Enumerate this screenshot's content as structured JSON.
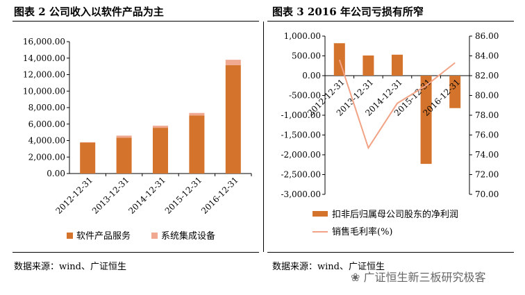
{
  "header": {
    "left_title": "图表 2  公司收入以软件产品为主",
    "right_title": "图表 3 2016 年公司亏损有所窄"
  },
  "footer": {
    "left_source": "数据来源：wind、广证恒生",
    "right_source": "数据来源：wind、广证恒生",
    "watermark": "广证恒生新三板研究极客"
  },
  "chart_data": [
    {
      "type": "bar",
      "stacked": true,
      "categories": [
        "2012-12-31",
        "2013-12-31",
        "2014-12-31",
        "2015-12-31",
        "2016-12-31"
      ],
      "series": [
        {
          "name": "软件产品服务",
          "values": [
            3750,
            4350,
            5550,
            7050,
            13150
          ],
          "color": "#d4732c"
        },
        {
          "name": "系统集成设备",
          "values": [
            50,
            250,
            250,
            300,
            650
          ],
          "color": "#f0a890"
        }
      ],
      "ylim": [
        0,
        16000
      ],
      "yticks": [
        "0.00",
        "2,000.00",
        "4,000.00",
        "6,000.00",
        "8,000.00",
        "10,000.00",
        "12,000.00",
        "14,000.00",
        "16,000.00"
      ],
      "grid": false,
      "legend": "bottom"
    },
    {
      "type": "bar+line",
      "categories": [
        "2012-12-31",
        "2013-12-31",
        "2014-12-31",
        "2015-12-31",
        "2016-12-31"
      ],
      "series": [
        {
          "name": "扣非后归属母公司股东的净利润",
          "type": "bar",
          "axis": "left",
          "values": [
            820,
            510,
            530,
            -2230,
            -820
          ],
          "color": "#d4732c"
        },
        {
          "name": "销售毛利率(%)",
          "type": "line",
          "axis": "right",
          "values": [
            83.6,
            74.7,
            79.2,
            81.0,
            83.3
          ],
          "color": "#f2a386"
        }
      ],
      "ylim_left": [
        -3000,
        1000
      ],
      "yticks_left": [
        "-3,000.00",
        "-2,500.00",
        "-2,000.00",
        "-1,500.00",
        "-1,000.00",
        "-500.00",
        "0.00",
        "500.00",
        "1,000.00"
      ],
      "ylim_right": [
        70,
        86
      ],
      "yticks_right": [
        "70.00",
        "72.00",
        "74.00",
        "76.00",
        "78.00",
        "80.00",
        "82.00",
        "84.00",
        "86.00"
      ],
      "grid": false,
      "legend": "bottom"
    }
  ]
}
